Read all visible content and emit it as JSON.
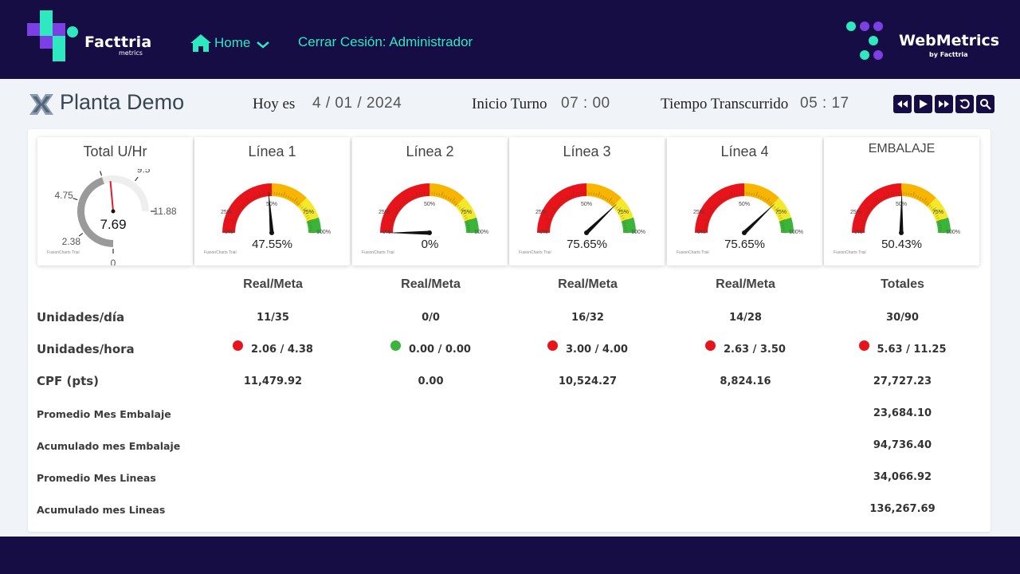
{
  "brand": {
    "name": "Facttria",
    "sub": "metrics"
  },
  "webmetrics": {
    "name": "WebMetrics",
    "sub": "by Facttria"
  },
  "nav": {
    "home_label": "Home",
    "logout_label": "Cerrar Cesión: Administrador"
  },
  "colors": {
    "navy": "#170d45",
    "accent": "#2ee8c0",
    "red": "#e8141b",
    "orange": "#f7b500",
    "yellow": "#f3e92a",
    "green": "#3cb43c"
  },
  "plant": {
    "name": "Planta Demo"
  },
  "info": {
    "today_label": "Hoy es",
    "today_value": "4 / 01 / 2024",
    "shift_label": "Inicio Turno",
    "shift_value": "07 :  00",
    "elapsed_label": "Tiempo Transcurrido",
    "elapsed_value": "05 :  17"
  },
  "controls": [
    "rewind-icon",
    "play-icon",
    "fast-forward-icon",
    "refresh-icon",
    "search-icon"
  ],
  "total_gauge": {
    "title": "Total U/Hr",
    "value_text": "7.69",
    "value": 7.69,
    "target": 7.13,
    "max": 11.88,
    "ticks": [
      "0",
      "2.38",
      "4.75",
      "7.13",
      "9.5",
      "11.88"
    ],
    "trial": "FusionCharts Trial"
  },
  "gauges": [
    {
      "title": "Línea 1",
      "value_text": "47.55%",
      "percent": 47.55,
      "trial": "FusionCharts Trial"
    },
    {
      "title": "Línea 2",
      "value_text": "0%",
      "percent": 0,
      "trial": "FusionCharts Trial"
    },
    {
      "title": "Línea 3",
      "value_text": "75.65%",
      "percent": 75.65,
      "trial": "FusionCharts Trial"
    },
    {
      "title": "Línea 4",
      "value_text": "75.65%",
      "percent": 75.65,
      "trial": "FusionCharts Trial"
    },
    {
      "title": "EMBALAJE",
      "value_text": "50.43%",
      "percent": 50.43,
      "trial": "FusionCharts Trial"
    }
  ],
  "gauge_ticks": [
    "0%",
    "25%",
    "50%",
    "75%",
    "100%"
  ],
  "table": {
    "headers": [
      "Real/Meta",
      "Real/Meta",
      "Real/Meta",
      "Real/Meta",
      "Totales"
    ],
    "rows": [
      {
        "label": "Unidades/día",
        "values": [
          "11/35",
          "0/0",
          "16/32",
          "14/28",
          "30/90"
        ]
      },
      {
        "label": "Unidades/hora",
        "values": [
          "2.06 / 4.38",
          "0.00 / 0.00",
          "3.00 / 4.00",
          "2.63 / 3.50",
          "5.63 / 11.25"
        ],
        "status": [
          "red",
          "green",
          "red",
          "red",
          "red"
        ]
      },
      {
        "label": "CPF (pts)",
        "values": [
          "11,479.92",
          "0.00",
          "10,524.27",
          "8,824.16",
          "27,727.23"
        ]
      },
      {
        "label": "Promedio Mes Embalaje",
        "total": "23,684.10"
      },
      {
        "label": "Acumulado mes Embalaje",
        "total": "94,736.40"
      },
      {
        "label": "Promedio Mes Lineas",
        "total": "34,066.92"
      },
      {
        "label": "Acumulado mes Lineas",
        "total": "136,267.69"
      }
    ]
  }
}
